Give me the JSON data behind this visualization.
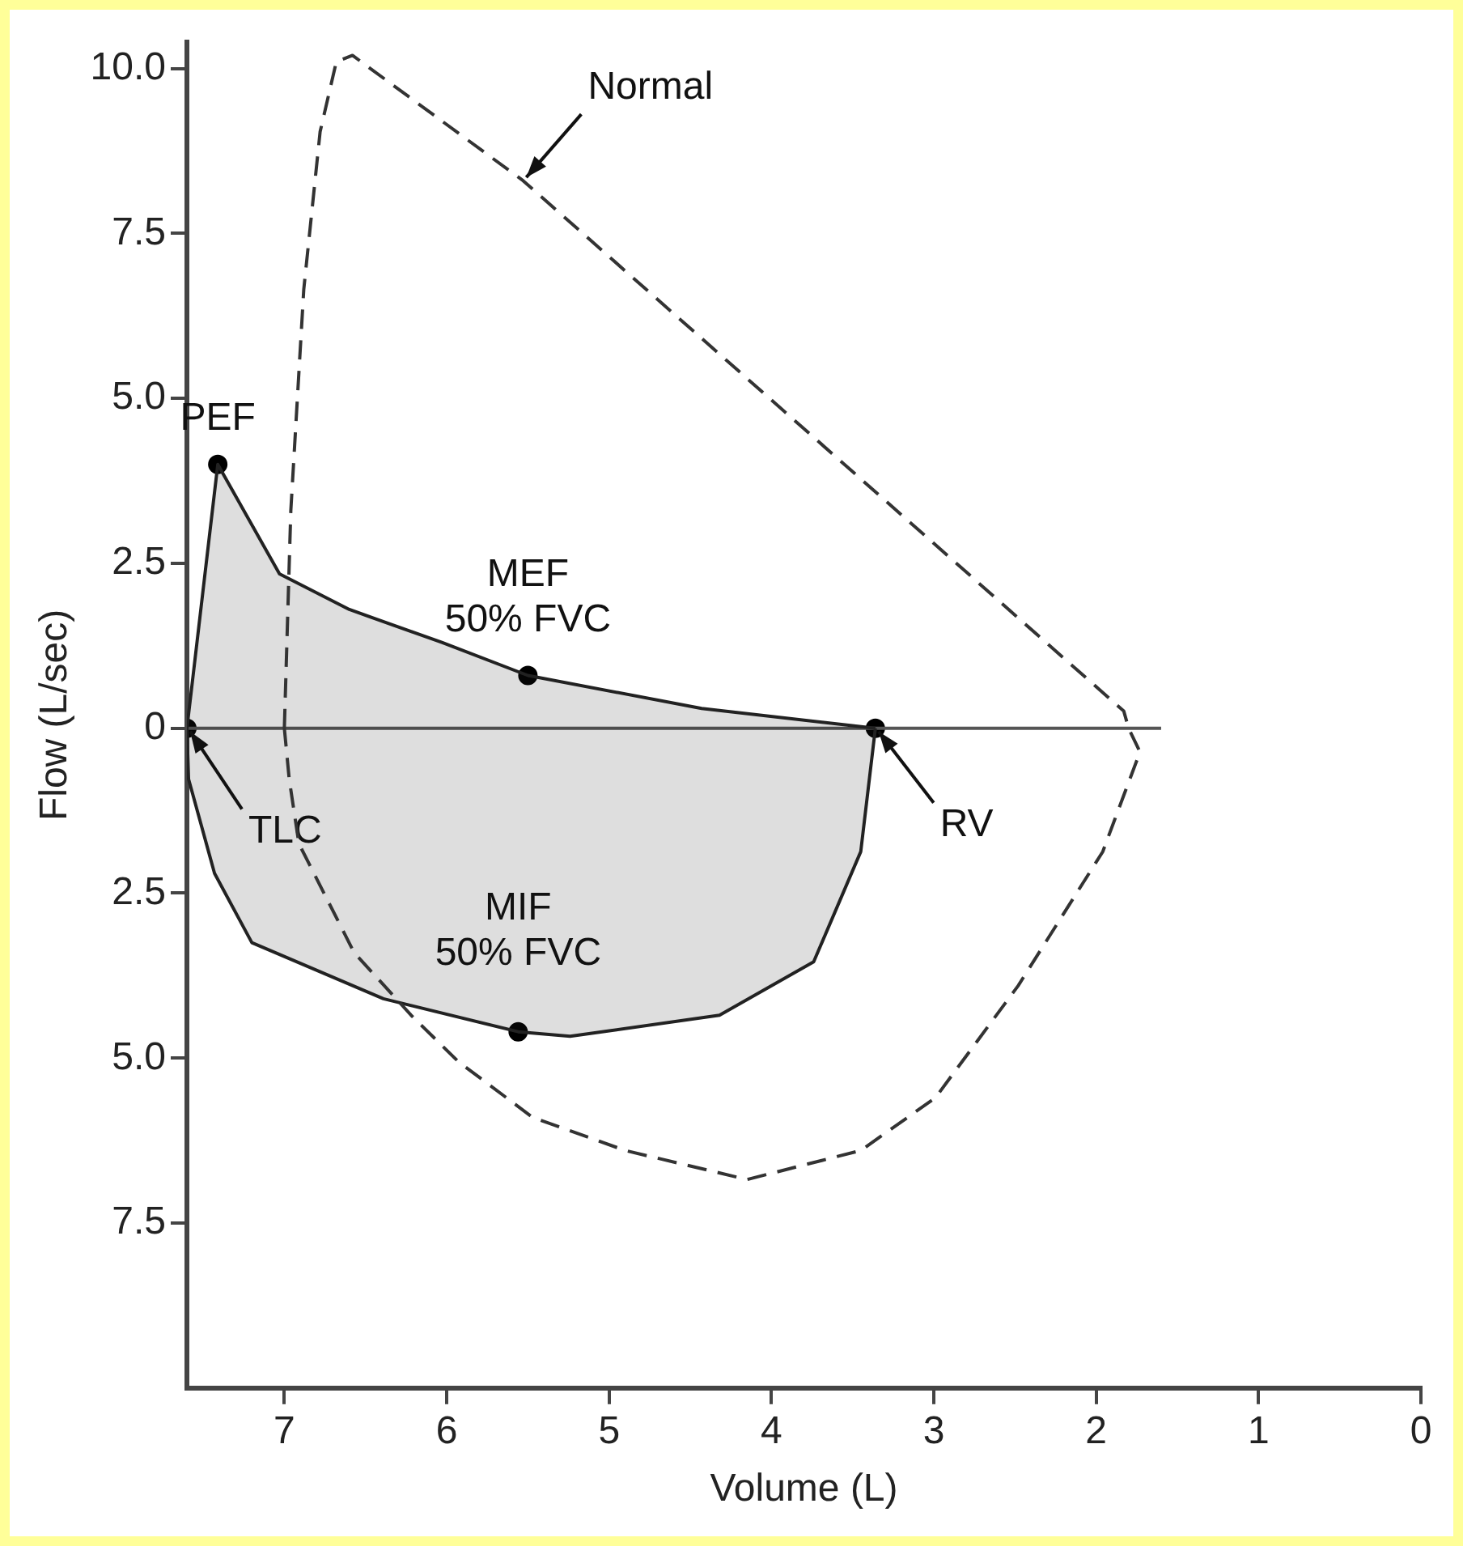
{
  "chart_data": {
    "type": "line",
    "xlabel": "Volume (L)",
    "ylabel": "Flow (L/sec)",
    "xlim": [
      7.6,
      0
    ],
    "xticks": [
      7,
      6,
      5,
      4,
      3,
      2,
      1,
      0
    ],
    "ylim": [
      -10,
      10.4
    ],
    "yticks": [
      {
        "value": 10,
        "label": "10.0"
      },
      {
        "value": 7.5,
        "label": "7.5"
      },
      {
        "value": 5,
        "label": "5.0"
      },
      {
        "value": 2.5,
        "label": "2.5"
      },
      0,
      {
        "value": -2.5,
        "label": "2.5"
      },
      {
        "value": -5,
        "label": "5.0"
      },
      {
        "value": -7.5,
        "label": "7.5"
      }
    ],
    "grid": false,
    "legend": false,
    "series": [
      {
        "type": "area",
        "color": "#222222",
        "x": [
          7.6,
          7.41,
          7.03,
          6.6,
          6.03,
          5.5,
          4.43,
          3.36
        ],
        "values": [
          0,
          4.0,
          2.34,
          1.8,
          1.3,
          0.8,
          0.3,
          0
        ]
      },
      {
        "type": "area",
        "color": "#222222",
        "x": [
          7.6,
          7.59,
          7.43,
          7.2,
          6.39,
          5.56,
          5.24,
          4.32,
          3.74,
          3.45,
          3.36
        ],
        "values": [
          0,
          -0.77,
          -2.2,
          -3.25,
          -4.1,
          -4.6,
          -4.67,
          -4.35,
          -3.54,
          -1.87,
          0
        ]
      },
      {
        "color": "#555555",
        "x": [
          7.6,
          1.6
        ],
        "values": [
          0,
          0
        ]
      },
      {
        "type": "scatter",
        "color": "#000000",
        "marker": "circle",
        "x": [
          7.6,
          7.41,
          5.5,
          5.56,
          3.36
        ],
        "values": [
          0,
          4.0,
          0.8,
          -4.6,
          0
        ]
      }
    ],
    "annotations": [
      "Normal",
      {
        "text": "PEF",
        "x": 7.41,
        "y": 4.0
      },
      {
        "text": "MEF\n50% FVC",
        "x": 5.5,
        "y": 0.8
      },
      {
        "text": "TLC",
        "x": 7.6,
        "y": 0
      },
      {
        "text": "MIF\n50% FVC",
        "x": 5.56,
        "y": -4.6
      },
      {
        "text": "RV",
        "x": 3.36,
        "y": 0
      }
    ]
  }
}
